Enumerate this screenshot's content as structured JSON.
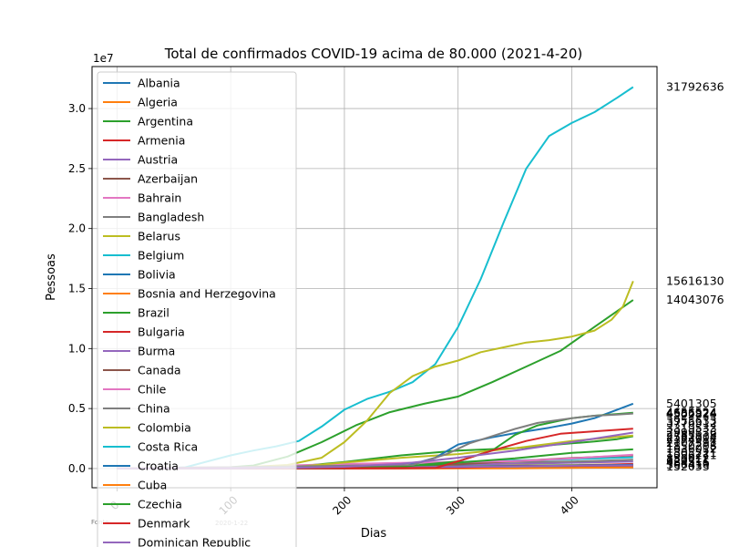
{
  "chart_data": {
    "type": "line",
    "title": "Total de confirmados COVID-19 acima de 80.000 (2021-4-20)",
    "xlabel": "Dias",
    "ylabel": "Pessoas",
    "y_offset_text": "1e7",
    "xlim": [
      -22,
      475
    ],
    "ylim": [
      -1600000,
      33500000
    ],
    "x_ticks": [
      0,
      100,
      200,
      300,
      400
    ],
    "x_tick_labels": [
      "0",
      "100",
      "200",
      "300",
      "400"
    ],
    "y_ticks": [
      0,
      5000000,
      10000000,
      15000000,
      20000000,
      25000000,
      30000000
    ],
    "y_tick_labels": [
      "0.0",
      "0.5",
      "1.0",
      "1.5",
      "2.0",
      "2.5",
      "3.0"
    ],
    "grid": true,
    "legend_position": "upper-left",
    "source_note": "Fonte: ...",
    "source_date": "2020-1-22",
    "end_labels": [
      "31792636",
      "15616130",
      "14043076",
      "5401305",
      "4655524",
      "4586924",
      "4502824",
      "3955633",
      "3776312",
      "3319533",
      "2999836",
      "2785118",
      "2582004",
      "2374914",
      "2107591",
      "1850208",
      "1636012",
      "1305221",
      "1096271",
      "830012",
      "620311",
      "484516",
      "306410",
      "152033"
    ],
    "series": [
      {
        "name": "Albania",
        "color": "#1f77b4",
        "x": [
          0,
          50,
          100,
          150,
          200,
          250,
          300,
          350,
          400,
          454
        ],
        "y": [
          0,
          0,
          0,
          0,
          2000,
          10000,
          45000,
          90000,
          125000,
          130000
        ]
      },
      {
        "name": "Algeria",
        "color": "#ff7f0e",
        "x": [
          0,
          50,
          100,
          150,
          200,
          250,
          300,
          350,
          400,
          454
        ],
        "y": [
          0,
          2000,
          8000,
          20000,
          40000,
          55000,
          85000,
          110000,
          115000,
          119000
        ]
      },
      {
        "name": "Argentina",
        "color": "#2ca02c",
        "x": [
          0,
          50,
          100,
          150,
          200,
          250,
          300,
          350,
          400,
          420,
          440,
          454
        ],
        "y": [
          0,
          0,
          10000,
          100000,
          550000,
          1100000,
          1500000,
          1700000,
          2100000,
          2250000,
          2450000,
          2690000
        ]
      },
      {
        "name": "Armenia",
        "color": "#d62728",
        "x": [
          0,
          50,
          100,
          150,
          200,
          250,
          300,
          350,
          400,
          454
        ],
        "y": [
          0,
          1000,
          10000,
          30000,
          45000,
          80000,
          140000,
          165000,
          180000,
          205000
        ]
      },
      {
        "name": "Austria",
        "color": "#9467bd",
        "x": [
          0,
          50,
          100,
          150,
          200,
          250,
          300,
          350,
          400,
          454
        ],
        "y": [
          0,
          10000,
          16000,
          20000,
          35000,
          100000,
          330000,
          400000,
          480000,
          590000
        ]
      },
      {
        "name": "Azerbaijan",
        "color": "#8c564b",
        "x": [
          0,
          50,
          100,
          150,
          200,
          250,
          300,
          350,
          400,
          454
        ],
        "y": [
          0,
          1000,
          5000,
          25000,
          38000,
          60000,
          180000,
          230000,
          250000,
          300000
        ]
      },
      {
        "name": "Bahrain",
        "color": "#e377c2",
        "x": [
          0,
          50,
          100,
          150,
          200,
          250,
          300,
          350,
          400,
          454
        ],
        "y": [
          0,
          1000,
          10000,
          35000,
          55000,
          80000,
          90000,
          100000,
          135000,
          170000
        ]
      },
      {
        "name": "Bangladesh",
        "color": "#7f7f7f",
        "x": [
          0,
          50,
          100,
          150,
          200,
          250,
          300,
          350,
          400,
          454
        ],
        "y": [
          0,
          0,
          30000,
          200000,
          350000,
          450000,
          500000,
          540000,
          580000,
          730000
        ]
      },
      {
        "name": "Belarus",
        "color": "#bcbd22",
        "x": [
          0,
          50,
          100,
          150,
          200,
          250,
          300,
          350,
          400,
          454
        ],
        "y": [
          0,
          0,
          30000,
          65000,
          75000,
          100000,
          180000,
          250000,
          300000,
          345000
        ]
      },
      {
        "name": "Belgium",
        "color": "#17becf",
        "x": [
          0,
          50,
          100,
          150,
          200,
          250,
          300,
          350,
          400,
          454
        ],
        "y": [
          0,
          2000,
          55000,
          65000,
          75000,
          120000,
          560000,
          680000,
          770000,
          940000
        ]
      },
      {
        "name": "Bolivia",
        "color": "#1f77b4",
        "x": [
          0,
          50,
          100,
          150,
          200,
          250,
          300,
          350,
          400,
          454
        ],
        "y": [
          0,
          0,
          5000,
          40000,
          110000,
          135000,
          145000,
          160000,
          240000,
          290000
        ]
      },
      {
        "name": "Bosnia and Herzegovina",
        "color": "#ff7f0e",
        "x": [
          0,
          50,
          100,
          150,
          200,
          250,
          300,
          350,
          400,
          454
        ],
        "y": [
          0,
          500,
          2000,
          6000,
          20000,
          30000,
          80000,
          105000,
          125000,
          190000
        ]
      },
      {
        "name": "Brazil",
        "color": "#2ca02c",
        "x": [
          0,
          30,
          60,
          90,
          120,
          150,
          180,
          210,
          240,
          270,
          300,
          330,
          360,
          390,
          420,
          454
        ],
        "y": [
          0,
          0,
          5000,
          40000,
          250000,
          1000000,
          2200000,
          3600000,
          4700000,
          5400000,
          6000000,
          7200000,
          8500000,
          9800000,
          11800000,
          14043076
        ]
      },
      {
        "name": "Bulgaria",
        "color": "#d62728",
        "x": [
          0,
          50,
          100,
          150,
          200,
          250,
          300,
          350,
          400,
          454
        ],
        "y": [
          0,
          500,
          2000,
          5000,
          15000,
          30000,
          160000,
          210000,
          250000,
          380000
        ]
      },
      {
        "name": "Burma",
        "color": "#9467bd",
        "x": [
          0,
          50,
          100,
          150,
          200,
          250,
          300,
          350,
          400,
          454
        ],
        "y": [
          0,
          0,
          200,
          350,
          1000,
          35000,
          90000,
          130000,
          142000,
          142000
        ]
      },
      {
        "name": "Canada",
        "color": "#8c564b",
        "x": [
          0,
          50,
          100,
          150,
          200,
          250,
          300,
          350,
          400,
          454
        ],
        "y": [
          0,
          5000,
          60000,
          105000,
          125000,
          180000,
          350000,
          620000,
          880000,
          1100000
        ]
      },
      {
        "name": "Chile",
        "color": "#e377c2",
        "x": [
          0,
          50,
          100,
          150,
          200,
          250,
          300,
          350,
          400,
          454
        ],
        "y": [
          0,
          200,
          12000,
          250000,
          380000,
          470000,
          540000,
          620000,
          840000,
          1150000
        ]
      },
      {
        "name": "China",
        "color": "#7f7f7f",
        "x": [
          0,
          50,
          100,
          150,
          200,
          250,
          300,
          350,
          400,
          454
        ],
        "y": [
          550,
          80000,
          83000,
          84000,
          85000,
          86000,
          87000,
          89000,
          90000,
          90500
        ]
      },
      {
        "name": "Colombia",
        "color": "#bcbd22",
        "x": [
          0,
          50,
          100,
          150,
          200,
          250,
          300,
          350,
          400,
          454
        ],
        "y": [
          0,
          0,
          8000,
          80000,
          500000,
          900000,
          1200000,
          1700000,
          2300000,
          2750000
        ]
      },
      {
        "name": "Costa Rica",
        "color": "#17becf",
        "x": [
          0,
          50,
          100,
          150,
          200,
          250,
          300,
          350,
          400,
          454
        ],
        "y": [
          0,
          0,
          800,
          6000,
          40000,
          95000,
          145000,
          170000,
          200000,
          240000
        ]
      },
      {
        "name": "Croatia",
        "color": "#1f77b4",
        "x": [
          0,
          50,
          100,
          150,
          200,
          250,
          300,
          350,
          400,
          454
        ],
        "y": [
          0,
          500,
          2200,
          3500,
          12000,
          40000,
          170000,
          225000,
          260000,
          310000
        ]
      },
      {
        "name": "Cuba",
        "color": "#ff7f0e",
        "x": [
          0,
          50,
          100,
          150,
          200,
          250,
          300,
          350,
          400,
          454
        ],
        "y": [
          0,
          0,
          1500,
          2300,
          3500,
          6500,
          8000,
          20000,
          60000,
          95000
        ]
      },
      {
        "name": "Czechia",
        "color": "#2ca02c",
        "x": [
          0,
          50,
          100,
          150,
          200,
          250,
          300,
          350,
          400,
          454
        ],
        "y": [
          0,
          1000,
          7500,
          12000,
          20000,
          100000,
          500000,
          850000,
          1300000,
          1600000
        ]
      },
      {
        "name": "Denmark",
        "color": "#d62728",
        "x": [
          0,
          50,
          100,
          150,
          200,
          250,
          300,
          350,
          400,
          454
        ],
        "y": [
          0,
          1000,
          9000,
          12500,
          15000,
          25000,
          75000,
          190000,
          215000,
          245000
        ]
      },
      {
        "name": "Dominican Republic",
        "color": "#9467bd",
        "x": [
          0,
          50,
          100,
          150,
          200,
          250,
          300,
          350,
          400,
          454
        ],
        "y": [
          0,
          0,
          6000,
          35000,
          85000,
          115000,
          140000,
          180000,
          240000,
          265000
        ]
      },
      {
        "name": "",
        "color": "#17becf",
        "x": [
          0,
          40,
          60,
          80,
          100,
          120,
          140,
          160,
          180,
          200,
          220,
          240,
          260,
          280,
          300,
          320,
          340,
          360,
          380,
          400,
          420,
          440,
          454
        ],
        "y": [
          0,
          0,
          100000,
          600000,
          1100000,
          1500000,
          1850000,
          2300000,
          3500000,
          4900000,
          5800000,
          6400000,
          7200000,
          8700000,
          11800000,
          15800000,
          20500000,
          25000000,
          27700000,
          28800000,
          29700000,
          30900000,
          31792636
        ]
      },
      {
        "name": "",
        "color": "#bcbd22",
        "x": [
          0,
          50,
          100,
          150,
          180,
          200,
          220,
          240,
          260,
          280,
          300,
          320,
          340,
          360,
          380,
          400,
          420,
          435,
          445,
          454
        ],
        "y": [
          0,
          0,
          50000,
          300000,
          900000,
          2200000,
          4000000,
          6300000,
          7700000,
          8500000,
          9000000,
          9700000,
          10100000,
          10500000,
          10700000,
          11000000,
          11500000,
          12400000,
          13500000,
          15616130
        ]
      },
      {
        "name": "",
        "color": "#1f77b4",
        "x": [
          0,
          250,
          280,
          300,
          330,
          350,
          380,
          400,
          420,
          440,
          454
        ],
        "y": [
          0,
          100000,
          900000,
          2000000,
          2600000,
          2950000,
          3400000,
          3750000,
          4200000,
          4900000,
          5401305
        ]
      },
      {
        "name": "",
        "color": "#2ca02c",
        "x": [
          0,
          250,
          300,
          330,
          350,
          370,
          400,
          420,
          440,
          454
        ],
        "y": [
          0,
          150000,
          600000,
          1500000,
          2800000,
          3600000,
          4200000,
          4400000,
          4550000,
          4655524
        ]
      },
      {
        "name": "",
        "color": "#7f7f7f",
        "x": [
          0,
          260,
          290,
          310,
          330,
          350,
          370,
          400,
          420,
          440,
          454
        ],
        "y": [
          0,
          300000,
          1200000,
          2100000,
          2700000,
          3300000,
          3800000,
          4200000,
          4400000,
          4500000,
          4586924
        ]
      },
      {
        "name": "",
        "color": "#d62728",
        "x": [
          0,
          280,
          300,
          330,
          360,
          390,
          420,
          454
        ],
        "y": [
          0,
          50000,
          600000,
          1500000,
          2300000,
          2900000,
          3100000,
          3319533
        ]
      },
      {
        "name": "",
        "color": "#9467bd",
        "x": [
          0,
          150,
          200,
          250,
          300,
          350,
          400,
          454
        ],
        "y": [
          0,
          50000,
          150000,
          400000,
          900000,
          1500000,
          2200000,
          2999836
        ]
      }
    ]
  }
}
